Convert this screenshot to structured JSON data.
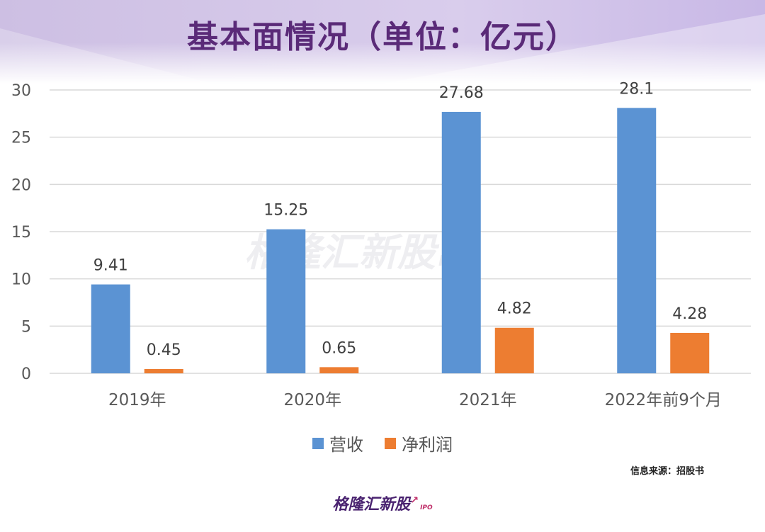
{
  "title": "基本面情况（单位：亿元）",
  "source_note": "信息来源：招股书",
  "brand": {
    "name": "格隆汇新股",
    "sub": "IPO"
  },
  "watermark": {
    "name": "格隆汇新股",
    "sub": "IPO"
  },
  "colors": {
    "title": "#5a2a78",
    "revenue": "#5b93d3",
    "net_profit": "#ed7d31",
    "grid": "#d9d9d9",
    "axis_text": "#595959"
  },
  "chart_data": {
    "type": "bar",
    "categories": [
      "2019年",
      "2020年",
      "2021年",
      "2022年前9个月"
    ],
    "series": [
      {
        "name": "营收",
        "values": [
          9.41,
          15.25,
          27.68,
          28.1
        ]
      },
      {
        "name": "净利润",
        "values": [
          0.45,
          0.65,
          4.82,
          4.28
        ]
      }
    ],
    "data_labels": [
      [
        "9.41",
        "15.25",
        "27.68",
        "28.1"
      ],
      [
        "0.45",
        "0.65",
        "4.82",
        "4.28"
      ]
    ],
    "ylim": [
      0,
      30
    ],
    "yticks": [
      0,
      5,
      10,
      15,
      20,
      25,
      30
    ],
    "grid": true,
    "legend": "bottom-center",
    "title": "基本面情况（单位：亿元）",
    "xlabel": "",
    "ylabel": ""
  }
}
